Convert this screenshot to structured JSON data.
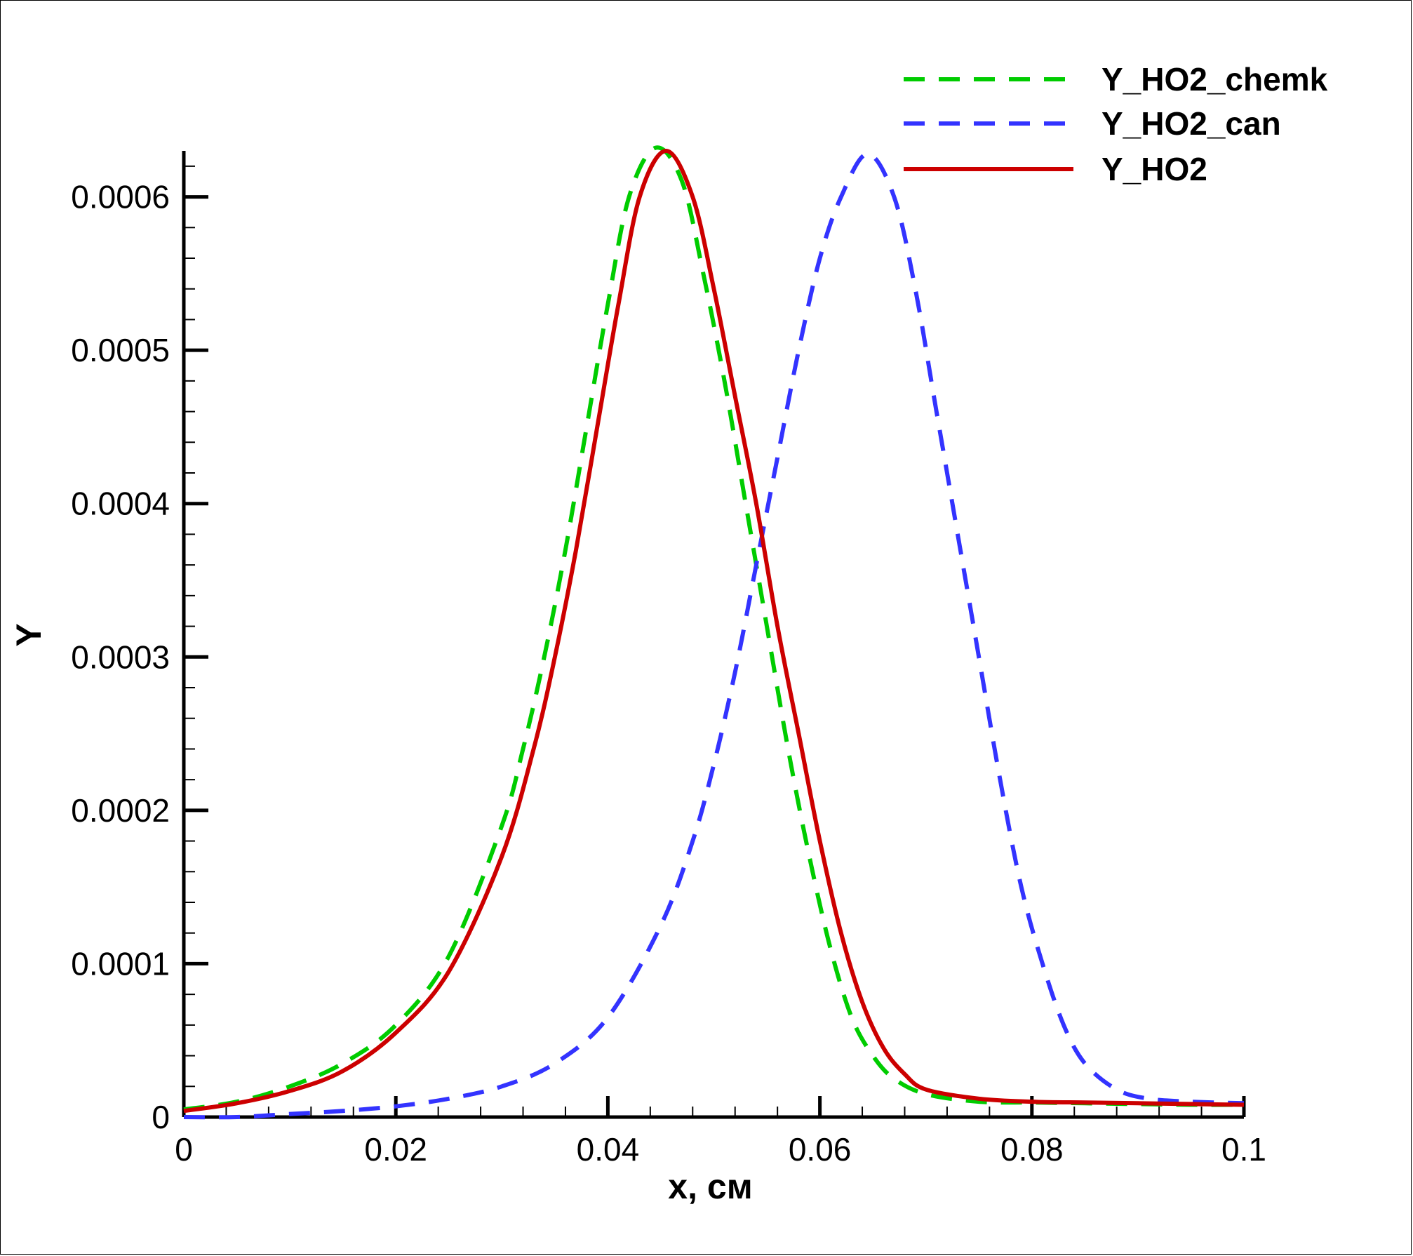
{
  "chart_data": {
    "type": "line",
    "xlabel": "x, см",
    "ylabel": "Y",
    "xlim": [
      0,
      0.1
    ],
    "ylim": [
      0,
      0.00063
    ],
    "x_ticks": [
      "0",
      "0.02",
      "0.04",
      "0.06",
      "0.08",
      "0.1"
    ],
    "y_ticks": [
      "0",
      "0.0001",
      "0.0002",
      "0.0003",
      "0.0004",
      "0.0005",
      "0.0006"
    ],
    "x_tick_values": [
      0,
      0.02,
      0.04,
      0.06,
      0.08,
      0.1
    ],
    "y_tick_values": [
      0,
      0.0001,
      0.0002,
      0.0003,
      0.0004,
      0.0005,
      0.0006
    ],
    "grid": false,
    "legend_position": "top-right",
    "series": [
      {
        "name": "Y_HO2_chemk",
        "color": "#00cc00",
        "style": "dashed",
        "x": [
          0,
          0.005,
          0.01,
          0.015,
          0.02,
          0.025,
          0.03,
          0.032,
          0.034,
          0.036,
          0.038,
          0.04,
          0.042,
          0.0445,
          0.047,
          0.049,
          0.051,
          0.053,
          0.055,
          0.057,
          0.059,
          0.061,
          0.063,
          0.065,
          0.067,
          0.07,
          0.075,
          0.08,
          0.085,
          0.09,
          0.095,
          0.1
        ],
        "y": [
          5e-06,
          1e-05,
          2e-05,
          3.5e-05,
          6e-05,
          0.000105,
          0.00019,
          0.00024,
          0.0003,
          0.00037,
          0.00045,
          0.00053,
          0.0006,
          0.000632,
          0.00061,
          0.00055,
          0.00048,
          0.0004,
          0.00032,
          0.00024,
          0.00017,
          0.00011,
          6.5e-05,
          4e-05,
          2.5e-05,
          1.5e-05,
          1e-05,
          9.5e-06,
          9e-06,
          8.5e-06,
          8e-06,
          8e-06
        ]
      },
      {
        "name": "Y_HO2_can",
        "color": "#3333ff",
        "style": "dashed",
        "x": [
          0,
          0.005,
          0.01,
          0.015,
          0.02,
          0.025,
          0.03,
          0.035,
          0.04,
          0.045,
          0.048,
          0.05,
          0.052,
          0.054,
          0.056,
          0.058,
          0.06,
          0.062,
          0.0645,
          0.067,
          0.069,
          0.071,
          0.073,
          0.075,
          0.077,
          0.079,
          0.081,
          0.083,
          0.085,
          0.088,
          0.091,
          0.095,
          0.1
        ],
        "y": [
          0,
          0,
          2e-06,
          4e-06,
          7e-06,
          1.2e-05,
          2e-05,
          3.5e-05,
          6.5e-05,
          0.000125,
          0.00018,
          0.00023,
          0.00029,
          0.00036,
          0.00043,
          0.0005,
          0.00056,
          0.0006,
          0.000628,
          0.0006,
          0.00054,
          0.00046,
          0.00038,
          0.0003,
          0.00022,
          0.00015,
          0.0001,
          6e-05,
          3.5e-05,
          1.8e-05,
          1.2e-05,
          1e-05,
          9e-06
        ]
      },
      {
        "name": "Y_HO2",
        "color": "#cc0000",
        "style": "solid",
        "x": [
          0,
          0.005,
          0.01,
          0.015,
          0.02,
          0.025,
          0.03,
          0.033,
          0.035,
          0.037,
          0.039,
          0.041,
          0.043,
          0.0455,
          0.048,
          0.05,
          0.052,
          0.054,
          0.056,
          0.058,
          0.06,
          0.062,
          0.064,
          0.066,
          0.068,
          0.07,
          0.075,
          0.08,
          0.085,
          0.09,
          0.095,
          0.1
        ],
        "y": [
          4e-06,
          9e-06,
          1.7e-05,
          3e-05,
          5.5e-05,
          9.5e-05,
          0.00017,
          0.00024,
          0.0003,
          0.00037,
          0.00045,
          0.00053,
          0.0006,
          0.00063,
          0.0006,
          0.00054,
          0.00047,
          0.0004,
          0.00032,
          0.00025,
          0.00018,
          0.00012,
          7.5e-05,
          4.5e-05,
          2.8e-05,
          1.8e-05,
          1.2e-05,
          1e-05,
          9.5e-06,
          9e-06,
          8.5e-06,
          8e-06
        ]
      }
    ]
  }
}
